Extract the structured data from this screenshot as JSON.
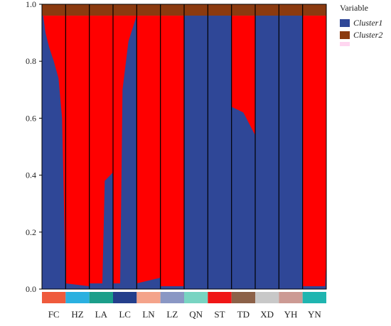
{
  "chart_data": {
    "type": "bar",
    "subtype": "structure-plot",
    "categories": [
      "FC",
      "HZ",
      "LA",
      "LC",
      "LN",
      "LZ",
      "QN",
      "ST",
      "TD",
      "XD",
      "YH",
      "YN"
    ],
    "series": [
      {
        "name": "Cluster1",
        "color": "#2f4797"
      },
      {
        "name": "Cluster2",
        "color": "#8b3a0f"
      }
    ],
    "group_colors": [
      "#ef5a3c",
      "#2ab0e0",
      "#1b9e8a",
      "#243f8c",
      "#f4a38a",
      "#8a97c4",
      "#78d4c2",
      "#f01616",
      "#8c6148",
      "#c8c8c8",
      "#cc9a94",
      "#1fb5b0"
    ],
    "main_fill_colors": [
      "#2f4797",
      "#ff0000"
    ],
    "cluster1_profiles": [
      [
        [
          0,
          0.98
        ],
        [
          0.05,
          0.96
        ],
        [
          0.15,
          0.9
        ],
        [
          0.3,
          0.85
        ],
        [
          0.5,
          0.8
        ],
        [
          0.7,
          0.74
        ],
        [
          0.85,
          0.6
        ],
        [
          1,
          0.02
        ]
      ],
      [
        [
          0,
          0.02
        ],
        [
          1,
          0.01
        ]
      ],
      [
        [
          0,
          0.02
        ],
        [
          0.55,
          0.02
        ],
        [
          0.65,
          0.38
        ],
        [
          1,
          0.41
        ]
      ],
      [
        [
          0,
          0.02
        ],
        [
          0.3,
          0.02
        ],
        [
          0.4,
          0.7
        ],
        [
          0.65,
          0.87
        ],
        [
          1,
          0.99
        ]
      ],
      [
        [
          0,
          0.02
        ],
        [
          1,
          0.04
        ]
      ],
      [
        [
          0,
          0.01
        ],
        [
          1,
          0.01
        ]
      ],
      [
        [
          0,
          0.99
        ],
        [
          1,
          0.99
        ]
      ],
      [
        [
          0,
          0.99
        ],
        [
          1,
          0.99
        ]
      ],
      [
        [
          0,
          0.64
        ],
        [
          0.5,
          0.62
        ],
        [
          1,
          0.54
        ]
      ],
      [
        [
          0,
          0.99
        ],
        [
          1,
          0.99
        ]
      ],
      [
        [
          0,
          0.99
        ],
        [
          1,
          0.99
        ]
      ],
      [
        [
          0,
          0.01
        ],
        [
          0.95,
          0.01
        ],
        [
          1,
          0.1
        ]
      ]
    ],
    "top_band": 0.04,
    "ylim": [
      0,
      1
    ],
    "yticks": [
      0.0,
      0.2,
      0.4,
      0.6,
      0.8,
      1.0
    ],
    "ytick_labels": [
      "0.0",
      "0.2",
      "0.4",
      "0.6",
      "0.8",
      "1.0"
    ],
    "xlabel": "",
    "ylabel": "",
    "legend": {
      "title": "Variable",
      "position": "right",
      "items": [
        "Cluster1",
        "Cluster2"
      ]
    }
  }
}
